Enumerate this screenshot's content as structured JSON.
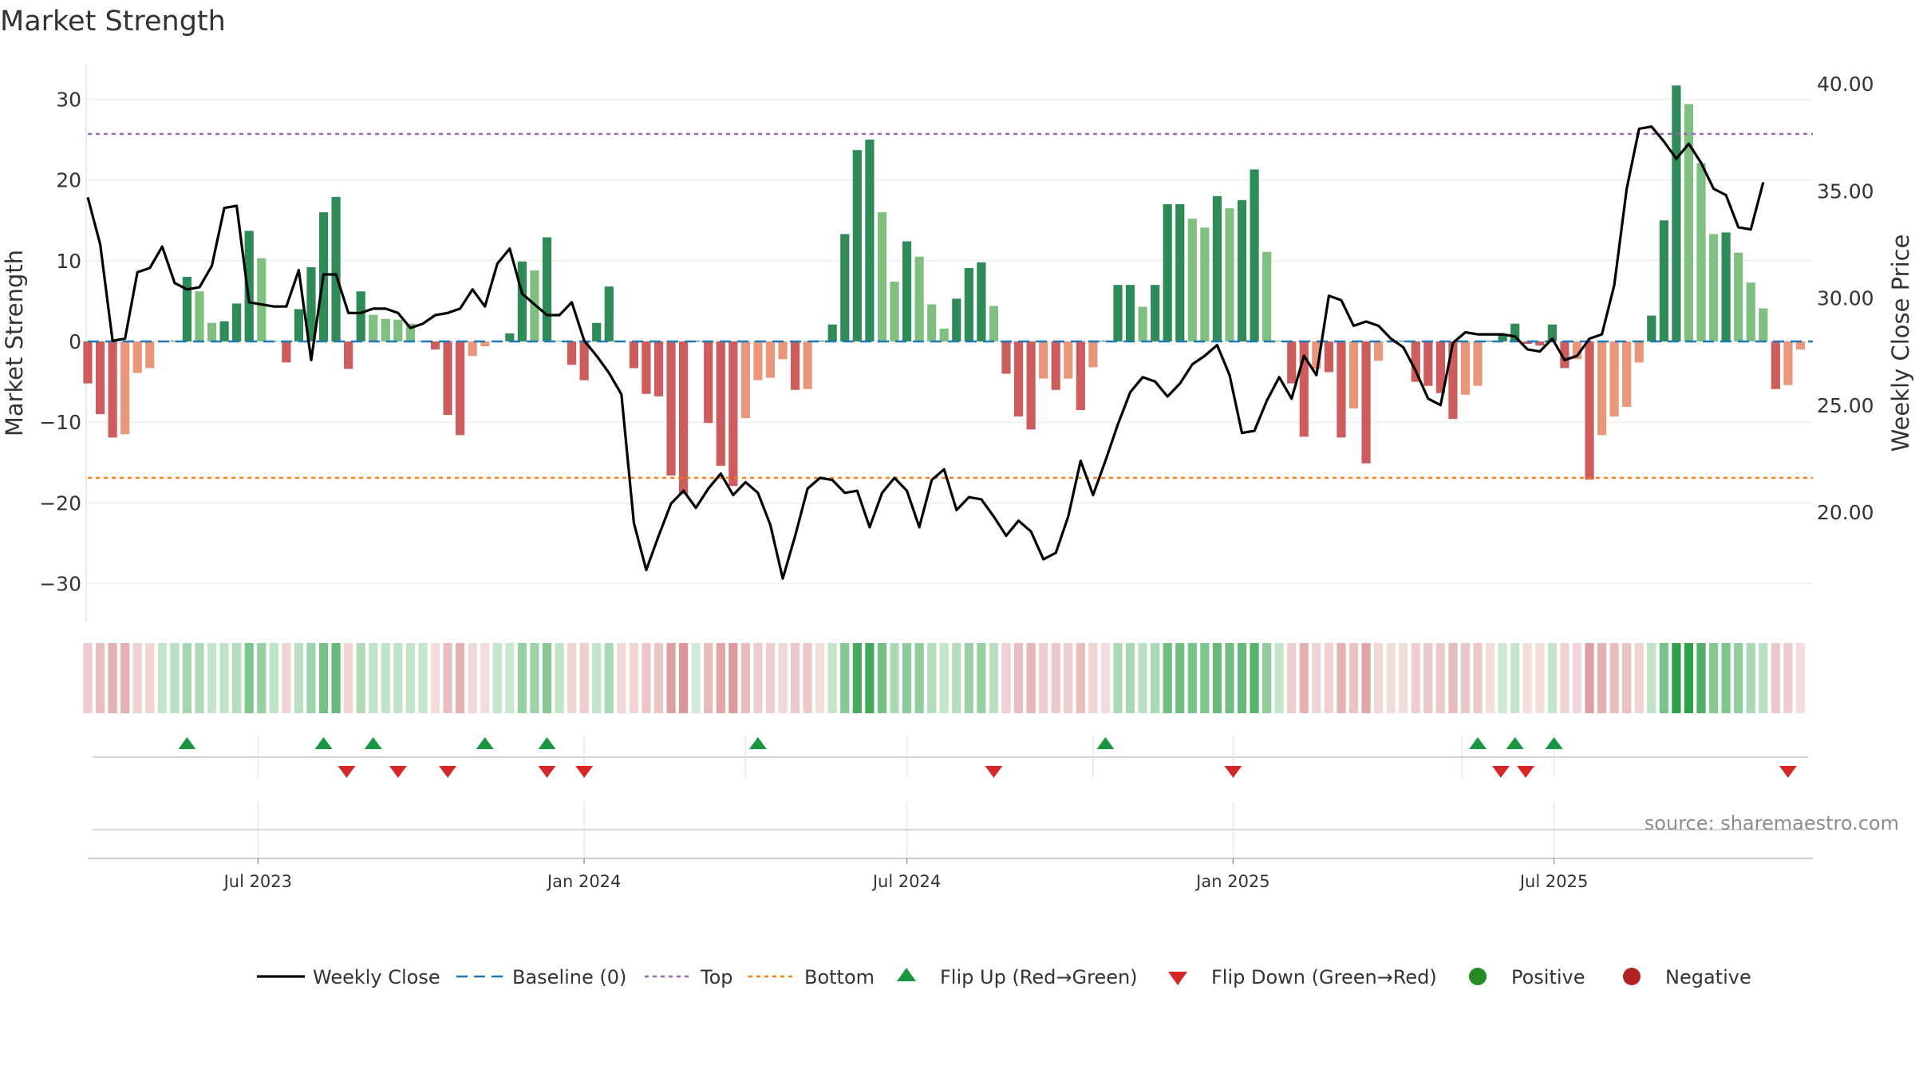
{
  "source_text": "source: sharemaestro.com",
  "colors": {
    "pos_strong": "#2e8b57",
    "pos_weak": "#7fc080",
    "neg_strong": "#cd5c5c",
    "neg_weak": "#e9967a",
    "line": "#000000",
    "baseline": "#1f77b4",
    "top": "#9467bd",
    "bottom": "#ff7f0e",
    "flip_up": "#1a9641",
    "flip_down": "#d62728",
    "positive": "#228b22",
    "negative": "#b22222"
  },
  "chart_data": {
    "type": "bar",
    "title": "Market Strength",
    "ylabel": "Market Strength",
    "y2label": "Weekly Close Price",
    "ylim": [
      -35,
      35
    ],
    "y2lim": [
      15,
      40.5
    ],
    "xlim": [
      "2023-03-27",
      "2025-11-24"
    ],
    "yticks": [
      "30",
      "20",
      "10",
      "0",
      "−10",
      "−20",
      "−30"
    ],
    "y2ticks": [
      "40.00",
      "35.00",
      "30.00",
      "25.00",
      "20.00"
    ],
    "xticks": [
      {
        "date": "2023-07-01",
        "label": "Jul 2023"
      },
      {
        "date": "2024-01-01",
        "label": "Jan 2024"
      },
      {
        "date": "2024-07-01",
        "label": "Jul 2024"
      },
      {
        "date": "2025-01-01",
        "label": "Jan 2025"
      },
      {
        "date": "2025-07-01",
        "label": "Jul 2025"
      }
    ],
    "start_date": "2023-03-27",
    "week_days": 7,
    "strength": [
      -5.2,
      -9,
      -11.9,
      -11.5,
      -3.9,
      -3.3,
      0.1,
      0.1,
      8,
      6.2,
      2.3,
      2.5,
      4.7,
      13.7,
      10.3,
      0.1,
      -2.6,
      4,
      9.2,
      16,
      17.9,
      -3.4,
      6.2,
      3.3,
      2.8,
      2.7,
      2.2,
      0.1,
      -1,
      -9.1,
      -11.6,
      -1.8,
      -0.6,
      0.1,
      1,
      9.9,
      8.8,
      12.9,
      0.1,
      -2.9,
      -4.8,
      2.3,
      6.8,
      0.1,
      -3.3,
      -6.5,
      -6.8,
      -16.6,
      -18.9,
      0.1,
      -10.1,
      -15.4,
      -17.9,
      -9.5,
      -4.8,
      -4.5,
      -2.2,
      -6,
      -5.9,
      0.1,
      2.1,
      13.3,
      23.7,
      25,
      16,
      7.4,
      12.4,
      10.5,
      4.6,
      1.6,
      5.3,
      9.1,
      9.8,
      4.4,
      -4,
      -9.3,
      -10.9,
      -4.6,
      -6,
      -4.6,
      -8.5,
      -3.2,
      0.1,
      7,
      7,
      4.3,
      7,
      17,
      17,
      15.2,
      14.1,
      18,
      16.5,
      17.5,
      21.3,
      11.1,
      0.1,
      -5.2,
      -11.8,
      -3.4,
      -3.8,
      -11.9,
      -8.3,
      -15.1,
      -2.4,
      0.1,
      0.1,
      -5,
      -5.5,
      -6.4,
      -9.6,
      -6.6,
      -5.5,
      0.1,
      0.9,
      2.2,
      -0.3,
      -0.5,
      2.1,
      -3.3,
      -2.2,
      -17.1,
      -11.6,
      -9.3,
      -8.1,
      -2.6,
      3.2,
      15,
      31.7,
      29.4,
      22.1,
      13.3,
      13.5,
      11,
      7.3,
      4.1,
      -5.9,
      -5.4,
      -1
    ],
    "close": [
      34.7,
      32.5,
      28,
      28.1,
      31.2,
      31.4,
      32.4,
      30.7,
      30.4,
      30.5,
      31.5,
      34.2,
      34.3,
      29.8,
      29.7,
      29.6,
      29.6,
      31.3,
      27.1,
      31.1,
      31.1,
      29.3,
      29.3,
      29.5,
      29.5,
      29.3,
      28.6,
      28.8,
      29.2,
      29.3,
      29.5,
      30.4,
      29.6,
      31.6,
      32.3,
      30.2,
      29.7,
      29.2,
      29.2,
      29.8,
      28,
      27.3,
      26.5,
      25.5,
      19.5,
      17.3,
      18.9,
      20.4,
      21,
      20.2,
      21.1,
      21.8,
      20.8,
      21.4,
      20.9,
      19.4,
      16.9,
      18.9,
      21.1,
      21.6,
      21.5,
      20.9,
      21,
      19.3,
      20.9,
      21.6,
      21,
      19.3,
      21.5,
      22,
      20.1,
      20.7,
      20.6,
      19.8,
      18.9,
      19.6,
      19.1,
      17.8,
      18.1,
      19.8,
      22.4,
      20.8,
      22.4,
      24.1,
      25.6,
      26.3,
      26.1,
      25.4,
      26,
      26.9,
      27.3,
      27.8,
      26.4,
      23.7,
      23.8,
      25.2,
      26.3,
      25.3,
      27.3,
      26.4,
      30.1,
      29.9,
      28.7,
      28.9,
      28.7,
      28.1,
      27.7,
      26.6,
      25.3,
      25,
      27.9,
      28.4,
      28.3,
      28.3,
      28.3,
      28.2,
      27.6,
      27.5,
      28.1,
      27.1,
      27.3,
      28.1,
      28.3,
      30.6,
      35.1,
      37.9,
      38,
      37.3,
      36.5,
      37.2,
      36.3,
      35.1,
      34.8,
      33.3,
      33.2,
      35.4
    ],
    "band": [
      -5,
      -9,
      -12,
      -12,
      -4,
      -3,
      2,
      4,
      8,
      6,
      2,
      3,
      5,
      14,
      10,
      3,
      -3,
      4,
      9,
      16,
      18,
      -3,
      6,
      3,
      3,
      3,
      2,
      2,
      -1,
      -9,
      -12,
      -2,
      -1,
      2,
      1,
      10,
      9,
      13,
      3,
      -3,
      -5,
      2,
      7,
      -2,
      -3,
      -7,
      -7,
      -17,
      -19,
      0,
      -10,
      -15,
      -18,
      -10,
      -5,
      -5,
      -2,
      -6,
      -6,
      -1,
      2,
      13,
      24,
      25,
      16,
      7,
      12,
      11,
      5,
      2,
      5,
      9,
      10,
      4,
      -4,
      -9,
      -11,
      -5,
      -6,
      -5,
      -9,
      -3,
      -1,
      7,
      7,
      4,
      7,
      17,
      17,
      15,
      14,
      18,
      17,
      18,
      21,
      11,
      2,
      -5,
      -12,
      -3,
      -4,
      -12,
      -8,
      -15,
      -2,
      -1,
      -1,
      -5,
      -6,
      -6,
      -10,
      -7,
      -6,
      -1,
      1,
      2,
      -1,
      -1,
      2,
      -3,
      -2,
      -17,
      -12,
      -9,
      -8,
      -3,
      3,
      15,
      32,
      29,
      22,
      13,
      14,
      11,
      7,
      4,
      -6,
      -5,
      -1
    ],
    "top_line": 25.7,
    "bottom_line": -16.9,
    "flip_up": [
      "2023-05-22",
      "2023-08-07",
      "2023-09-04",
      "2023-11-06",
      "2023-12-11",
      "2024-04-08",
      "2024-10-21",
      "2025-05-19",
      "2025-06-09",
      "2025-07-01"
    ],
    "flip_down": [
      "2023-08-20",
      "2023-09-18",
      "2023-10-16",
      "2023-12-11",
      "2024-01-01",
      "2024-08-19",
      "2025-01-01",
      "2025-06-01",
      "2025-06-15",
      "2025-11-10"
    ],
    "vlines_row1": [
      "2023-07-01",
      "2024-01-01",
      "2024-04-01",
      "2024-07-01",
      "2024-10-14",
      "2025-01-01",
      "2025-05-10",
      "2025-07-01"
    ],
    "vlines_row2": [
      "2023-07-01",
      "2024-01-01",
      "2024-07-01",
      "2025-01-01",
      "2025-07-01"
    ],
    "legend": [
      {
        "label": "Weekly Close",
        "kind": "line"
      },
      {
        "label": "Baseline (0)",
        "kind": "dash"
      },
      {
        "label": "Top",
        "kind": "dot-top"
      },
      {
        "label": "Bottom",
        "kind": "dot-bottom"
      },
      {
        "label": "Flip Up (Red→Green)",
        "kind": "tri-up"
      },
      {
        "label": "Flip Down (Green→Red)",
        "kind": "tri-down"
      },
      {
        "label": "Positive",
        "kind": "dot-pos"
      },
      {
        "label": "Negative",
        "kind": "dot-neg"
      }
    ]
  }
}
